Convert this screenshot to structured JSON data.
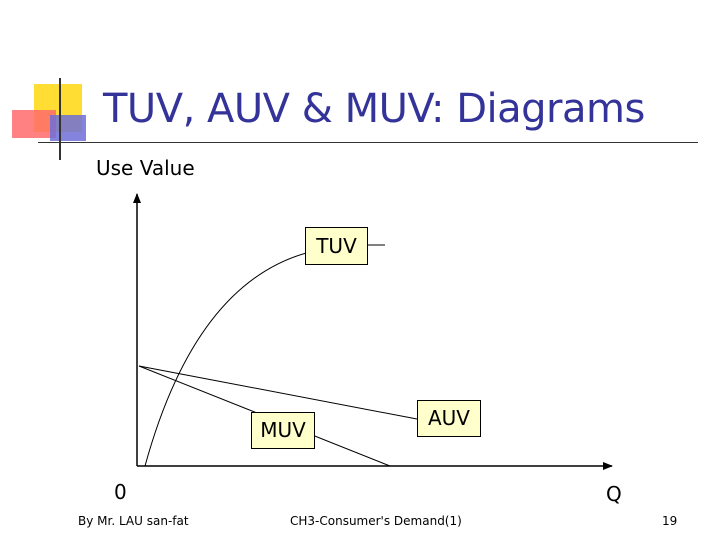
{
  "slide": {
    "title": "TUV, AUV & MUV: Diagrams"
  },
  "diagram": {
    "y_axis_label": "Use Value",
    "x_axis_label": "Q",
    "origin_label": "0",
    "curves": {
      "tuv": "TUV",
      "muv": "MUV",
      "auv": "AUV"
    }
  },
  "footer": {
    "author": "By Mr. LAU san-fat",
    "chapter": "CH3-Consumer's Demand(1)",
    "page": "19"
  },
  "colors": {
    "title": "#333399",
    "label_box": "#ffffcc",
    "deco_yellow": "#ffdd33",
    "deco_red": "#ff6b6b",
    "deco_blue": "#6f6fd8"
  }
}
